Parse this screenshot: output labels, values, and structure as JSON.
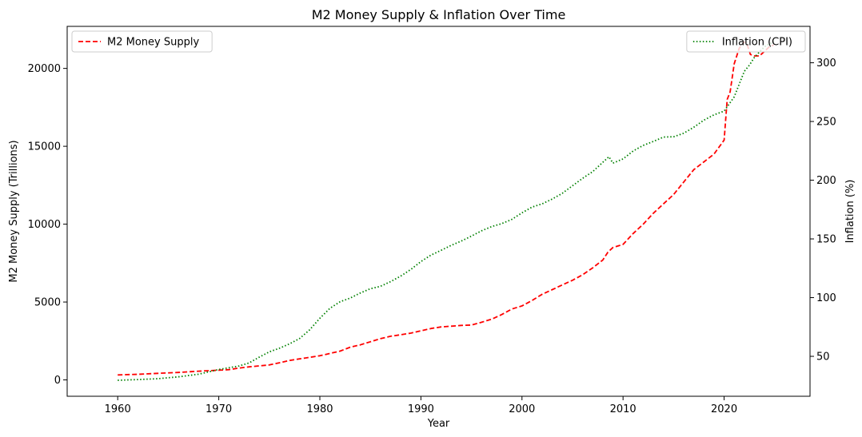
{
  "chart_data": {
    "type": "line",
    "title": "M2 Money Supply & Inflation Over Time",
    "xlabel": "Year",
    "ylabel_left": "M2 Money Supply (Trillions)",
    "ylabel_right": "Inflation (%)",
    "xlim": [
      1955,
      2028.5
    ],
    "ylim_left": [
      -1050,
      22700
    ],
    "ylim_right": [
      16,
      331
    ],
    "x_ticks": [
      1960,
      1970,
      1980,
      1990,
      2000,
      2010,
      2020
    ],
    "y_ticks_left": [
      0,
      5000,
      10000,
      15000,
      20000
    ],
    "y_ticks_right": [
      50,
      100,
      150,
      200,
      250,
      300
    ],
    "grid": false,
    "series": [
      {
        "name": "M2 Money Supply",
        "axis": "left",
        "color": "#ff0000",
        "style": "dashed",
        "legend_position": "top-left",
        "x": [
          1960,
          1962,
          1964,
          1966,
          1968,
          1970,
          1971,
          1972,
          1973,
          1974,
          1975,
          1976,
          1977,
          1978,
          1979,
          1980,
          1981,
          1982,
          1983,
          1984,
          1985,
          1986,
          1987,
          1988,
          1989,
          1990,
          1991,
          1992,
          1993,
          1994,
          1995,
          1996,
          1997,
          1998,
          1999,
          2000,
          2001,
          2002,
          2003,
          2004,
          2005,
          2006,
          2007,
          2008,
          2008.5,
          2009,
          2010,
          2011,
          2012,
          2013,
          2014,
          2015,
          2016,
          2017,
          2018,
          2019,
          2020,
          2020.3,
          2020.6,
          2021,
          2021.5,
          2022,
          2022.3,
          2022.6,
          2023,
          2023.5,
          2024,
          2024.5,
          2024.9
        ],
        "values": [
          320,
          360,
          420,
          480,
          560,
          620,
          660,
          760,
          840,
          900,
          960,
          1100,
          1250,
          1350,
          1450,
          1550,
          1700,
          1850,
          2100,
          2250,
          2450,
          2650,
          2800,
          2900,
          3000,
          3150,
          3300,
          3400,
          3450,
          3500,
          3520,
          3700,
          3900,
          4200,
          4550,
          4750,
          5100,
          5500,
          5800,
          6100,
          6400,
          6750,
          7200,
          7700,
          8200,
          8500,
          8700,
          9400,
          10000,
          10700,
          11300,
          11900,
          12700,
          13500,
          14000,
          14500,
          15400,
          18000,
          18500,
          20300,
          21300,
          21700,
          21500,
          20900,
          20800,
          20800,
          21100,
          21400,
          21500
        ]
      },
      {
        "name": "Inflation (CPI)",
        "axis": "right",
        "color": "#008000",
        "style": "dotted",
        "legend_position": "top-right",
        "x": [
          1960,
          1962,
          1964,
          1966,
          1968,
          1970,
          1972,
          1973,
          1974,
          1975,
          1976,
          1977,
          1978,
          1979,
          1980,
          1981,
          1982,
          1983,
          1984,
          1985,
          1986,
          1987,
          1988,
          1989,
          1990,
          1991,
          1992,
          1993,
          1994,
          1995,
          1996,
          1997,
          1998,
          1999,
          2000,
          2001,
          2002,
          2003,
          2004,
          2005,
          2006,
          2007,
          2008,
          2008.6,
          2009,
          2010,
          2011,
          2012,
          2013,
          2014,
          2015,
          2016,
          2017,
          2018,
          2019,
          2020,
          2021,
          2022,
          2022.5,
          2023,
          2024,
          2024.9
        ],
        "values": [
          29.6,
          30.2,
          31.0,
          32.5,
          34.8,
          38.8,
          41.8,
          44.4,
          49.3,
          53.8,
          56.9,
          60.6,
          65.2,
          72.6,
          82.4,
          90.9,
          96.5,
          99.6,
          103.9,
          107.6,
          109.6,
          113.6,
          118.3,
          124.0,
          130.7,
          136.2,
          140.3,
          144.5,
          148.2,
          152.4,
          156.9,
          160.5,
          163.0,
          166.6,
          172.2,
          177.1,
          179.9,
          184.0,
          188.9,
          195.3,
          201.6,
          207.3,
          215.3,
          220.0,
          214.5,
          218.1,
          224.9,
          229.6,
          233.0,
          236.7,
          237.0,
          240.0,
          245.1,
          251.1,
          255.7,
          258.8,
          271.0,
          292.7,
          298.0,
          304.7,
          313.7,
          318.0
        ]
      }
    ]
  }
}
